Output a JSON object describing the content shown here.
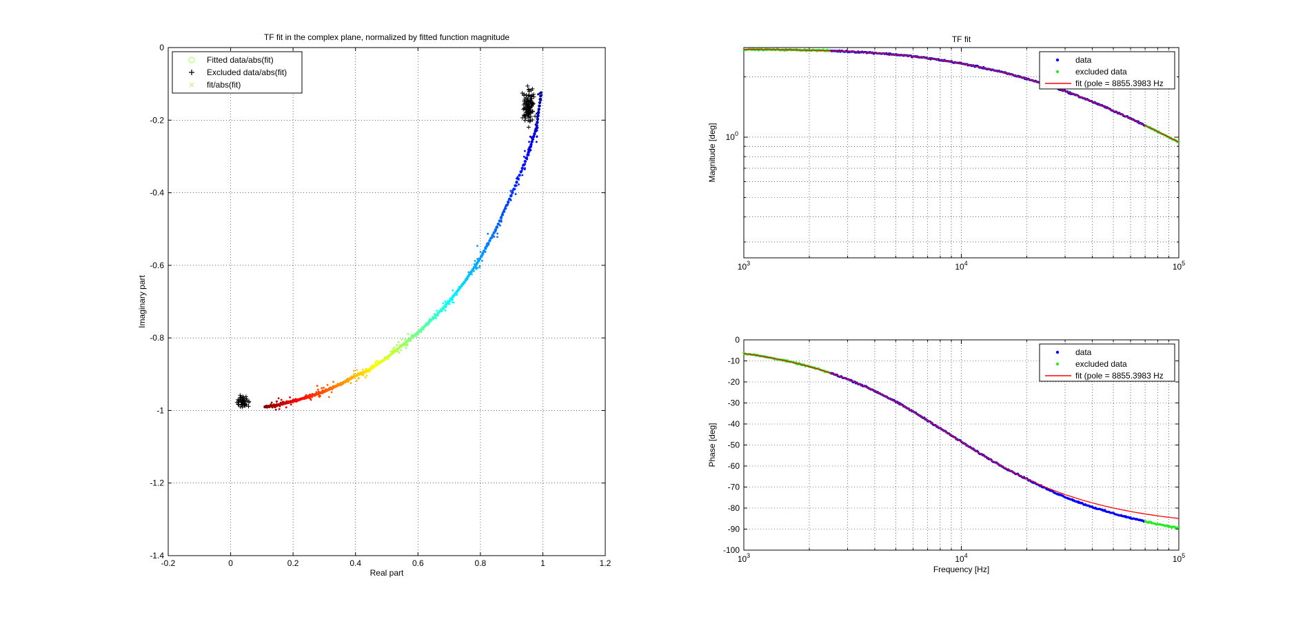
{
  "chart_data": [
    {
      "type": "scatter",
      "title": "TF fit in the complex plane, normalized by fitted function magnitude",
      "xlabel": "Real part",
      "ylabel": "Imaginary part",
      "xlim": [
        -0.2,
        1.2
      ],
      "ylim": [
        -1.4,
        0
      ],
      "xticks": [
        -0.2,
        0,
        0.2,
        0.4,
        0.6,
        0.8,
        1,
        1.2
      ],
      "yticks": [
        -1.4,
        -1.2,
        -1,
        -0.8,
        -0.6,
        -0.4,
        -0.2,
        0
      ],
      "x_tick_labels": [
        "-0.2",
        "0",
        "0.2",
        "0.4",
        "0.6",
        "0.8",
        "1",
        "1.2"
      ],
      "y_tick_labels": [
        "-1.4",
        "-1.2",
        "-1",
        "-0.8",
        "-0.6",
        "-0.4",
        "-0.2",
        "0"
      ],
      "grid": true,
      "legend": {
        "position": "top-left",
        "entries": [
          "Fitted data/abs(fit)",
          "Excluded data/abs(fit)",
          "fit/abs(fit)"
        ]
      },
      "colors": {
        "fitted_marker": "#b8ff6e",
        "excluded": "#000000",
        "fit_marker": "#b8ff6e"
      },
      "series": [
        {
          "name": "Fitted data/abs(fit)",
          "color_mode": "jet",
          "points": [
            [
              0.11,
              -0.99
            ],
            [
              0.15,
              -0.985
            ],
            [
              0.2,
              -0.975
            ],
            [
              0.25,
              -0.962
            ],
            [
              0.3,
              -0.948
            ],
            [
              0.35,
              -0.928
            ],
            [
              0.4,
              -0.905
            ],
            [
              0.45,
              -0.885
            ],
            [
              0.5,
              -0.855
            ],
            [
              0.55,
              -0.82
            ],
            [
              0.6,
              -0.785
            ],
            [
              0.65,
              -0.745
            ],
            [
              0.7,
              -0.7
            ],
            [
              0.75,
              -0.645
            ],
            [
              0.8,
              -0.58
            ],
            [
              0.85,
              -0.5
            ],
            [
              0.9,
              -0.405
            ],
            [
              0.95,
              -0.3
            ],
            [
              0.98,
              -0.22
            ],
            [
              0.995,
              -0.12
            ]
          ]
        },
        {
          "name": "Excluded data/abs(fit)",
          "clusters": [
            {
              "center": [
                0.04,
                -0.975
              ],
              "count": 45
            },
            {
              "center": [
                0.955,
                -0.165
              ],
              "count": 110
            }
          ]
        }
      ]
    },
    {
      "type": "line",
      "title": "TF fit",
      "xlabel": "",
      "ylabel": "Magnitude [deg]",
      "x_scale": "log",
      "y_scale": "log",
      "xlim": [
        1000,
        100000
      ],
      "ylim": [
        0.25,
        2.8
      ],
      "x_tick_labels": [
        {
          "base": "10",
          "exp": "3"
        },
        {
          "base": "10",
          "exp": "4"
        },
        {
          "base": "10",
          "exp": "5"
        }
      ],
      "y_tick_labels": [
        {
          "base": "10",
          "exp": "0"
        }
      ],
      "grid": true,
      "legend": {
        "position": "top-right",
        "entries": [
          "data",
          "excluded data",
          "fit (pole = 8855.3983 Hz"
        ]
      },
      "colors": {
        "data": "#0000ff",
        "excluded": "#22ee22",
        "fit": "#ff0000"
      },
      "pole_hz": 8855.3983,
      "series": [
        {
          "name": "data",
          "x_range": [
            2500,
            70000
          ]
        },
        {
          "name": "excluded data",
          "x_ranges": [
            [
              1000,
              2500
            ],
            [
              70000,
              100000
            ]
          ]
        },
        {
          "name": "fit (pole = 8855.3983 Hz",
          "x_range": [
            1000,
            100000
          ]
        }
      ]
    },
    {
      "type": "line",
      "title": "",
      "xlabel": "Frequency [Hz]",
      "ylabel": "Phase [deg]",
      "x_scale": "log",
      "xlim": [
        1000,
        100000
      ],
      "ylim": [
        -100,
        0
      ],
      "yticks": [
        -100,
        -90,
        -80,
        -70,
        -60,
        -50,
        -40,
        -30,
        -20,
        -10,
        0
      ],
      "y_tick_labels": [
        "-100",
        "-90",
        "-80",
        "-70",
        "-60",
        "-50",
        "-40",
        "-30",
        "-20",
        "-10",
        "0"
      ],
      "x_tick_labels": [
        {
          "base": "10",
          "exp": "3"
        },
        {
          "base": "10",
          "exp": "4"
        },
        {
          "base": "10",
          "exp": "5"
        }
      ],
      "grid": true,
      "legend": {
        "position": "top-right",
        "entries": [
          "data",
          "excluded data",
          "fit (pole = 8855.3983 Hz"
        ]
      },
      "colors": {
        "data": "#0000ff",
        "excluded": "#22ee22",
        "fit": "#ff0000"
      },
      "pole_hz": 8855.3983,
      "series": [
        {
          "name": "data",
          "x_range": [
            2500,
            70000
          ]
        },
        {
          "name": "excluded data",
          "x_ranges": [
            [
              1000,
              2500
            ],
            [
              70000,
              100000
            ]
          ]
        },
        {
          "name": "fit (pole = 8855.3983 Hz",
          "x_range": [
            1000,
            100000
          ]
        }
      ]
    }
  ]
}
